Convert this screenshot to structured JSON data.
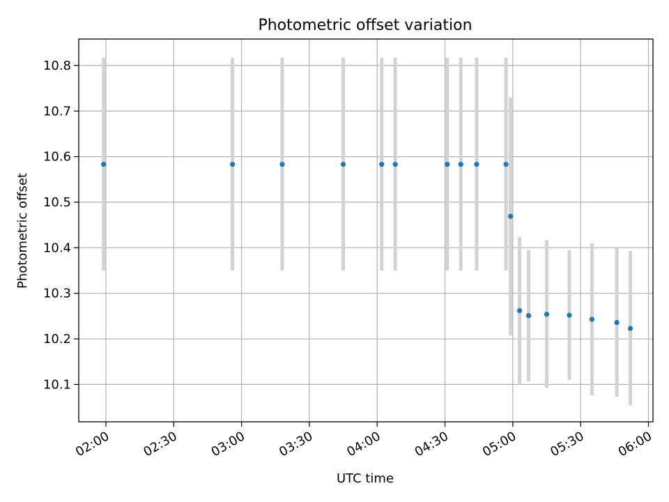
{
  "chart_data": {
    "type": "scatter",
    "title": "Photometric offset variation",
    "xlabel": "UTC time",
    "ylabel": "Photometric offset",
    "grid": true,
    "legend": "none",
    "x_axis_kind": "time",
    "xlim": [
      "01:48",
      "06:02"
    ],
    "ylim": [
      10.018,
      10.858
    ],
    "x_ticks": [
      "02:00",
      "02:30",
      "03:00",
      "03:30",
      "04:00",
      "04:30",
      "05:00",
      "05:30",
      "06:00"
    ],
    "y_ticks": [
      10.1,
      10.2,
      10.3,
      10.4,
      10.5,
      10.6,
      10.7,
      10.8
    ],
    "y_tick_labels": [
      "10.1",
      "10.2",
      "10.3",
      "10.4",
      "10.5",
      "10.6",
      "10.7",
      "10.8"
    ],
    "series": [
      {
        "color": "#1f77b4",
        "errorbar_color": "#d3d3d3",
        "points": [
          {
            "t": "01:59",
            "y": 10.583,
            "lo": 10.35,
            "hi": 10.817
          },
          {
            "t": "02:56",
            "y": 10.583,
            "lo": 10.35,
            "hi": 10.817
          },
          {
            "t": "03:18",
            "y": 10.583,
            "lo": 10.35,
            "hi": 10.817
          },
          {
            "t": "03:45",
            "y": 10.583,
            "lo": 10.35,
            "hi": 10.817
          },
          {
            "t": "04:02",
            "y": 10.583,
            "lo": 10.35,
            "hi": 10.817
          },
          {
            "t": "04:08",
            "y": 10.583,
            "lo": 10.35,
            "hi": 10.817
          },
          {
            "t": "04:31",
            "y": 10.583,
            "lo": 10.35,
            "hi": 10.817
          },
          {
            "t": "04:37",
            "y": 10.583,
            "lo": 10.35,
            "hi": 10.817
          },
          {
            "t": "04:44",
            "y": 10.583,
            "lo": 10.35,
            "hi": 10.817
          },
          {
            "t": "04:57",
            "y": 10.583,
            "lo": 10.35,
            "hi": 10.817
          },
          {
            "t": "04:59",
            "y": 10.469,
            "lo": 10.208,
            "hi": 10.73
          },
          {
            "t": "05:03",
            "y": 10.262,
            "lo": 10.1,
            "hi": 10.424
          },
          {
            "t": "05:07",
            "y": 10.251,
            "lo": 10.107,
            "hi": 10.395
          },
          {
            "t": "05:15",
            "y": 10.254,
            "lo": 10.092,
            "hi": 10.417
          },
          {
            "t": "05:25",
            "y": 10.252,
            "lo": 10.11,
            "hi": 10.395
          },
          {
            "t": "05:35",
            "y": 10.243,
            "lo": 10.076,
            "hi": 10.41
          },
          {
            "t": "05:46",
            "y": 10.236,
            "lo": 10.073,
            "hi": 10.399
          },
          {
            "t": "05:52",
            "y": 10.223,
            "lo": 10.054,
            "hi": 10.393
          }
        ]
      }
    ]
  }
}
